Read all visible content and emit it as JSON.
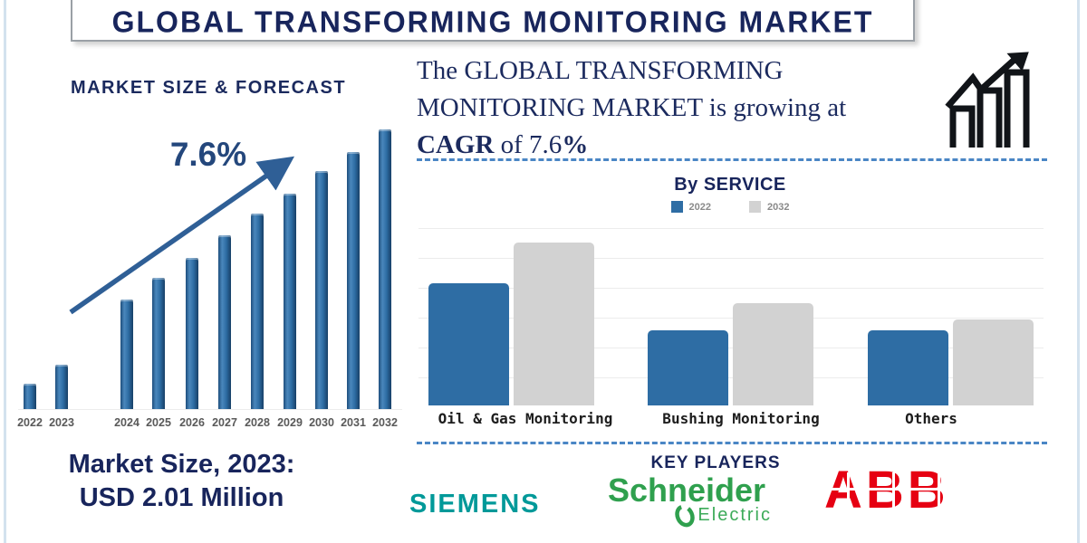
{
  "title_banner": {
    "text": "GLOBAL TRANSFORMING MONITORING MARKET"
  },
  "market_forecast": {
    "heading": "MARKET SIZE & FORECAST",
    "cagr_annotation": "7.6%"
  },
  "growth_note": {
    "line1": "The GLOBAL TRANSFORMING",
    "line2": "MONITORING MARKET is growing at",
    "cagr_bold": "CAGR",
    "cagr_rest": " of 7.6",
    "percent_bold": "%"
  },
  "by_service": {
    "heading": "By SERVICE",
    "legend": [
      {
        "label": "2022",
        "color": "#2e6da4"
      },
      {
        "label": "2032",
        "color": "#d2d2d2"
      }
    ]
  },
  "market_size_note": {
    "line1": "Market Size, 2023:",
    "line2": "USD 2.01 Million"
  },
  "key_players": {
    "heading": "KEY PLAYERS",
    "siemens": "SIEMENS",
    "schneider_line1": "Schneider",
    "schneider_line2": "Electric",
    "abb": "ABB"
  },
  "colors": {
    "navy_text": "#18255c",
    "bar_blue": "#2e6da4",
    "bar_gray": "#d2d2d2",
    "dashed_line_blue": "#4a86c5",
    "trend_arrow_blue": "#2f5f96",
    "siemens_teal": "#009999",
    "schneider_green": "#2fa04e",
    "abb_red": "#e60012",
    "year_label_gray": "#595959"
  },
  "chart_data": [
    {
      "type": "bar",
      "title": "MARKET SIZE & FORECAST",
      "categories": [
        "2022",
        "2023",
        "2024",
        "2025",
        "2026",
        "2027",
        "2028",
        "2029",
        "2030",
        "2031",
        "2032"
      ],
      "values": [
        9,
        16,
        39,
        47,
        54,
        62,
        70,
        77,
        85,
        92,
        100
      ],
      "units": "relative height, % of 2032 bar (no y-axis shown)",
      "annotation": "7.6% CAGR with rising trend arrow",
      "bar_color": "#2e6da4",
      "xlabel": "",
      "ylabel": "",
      "grid": "off"
    },
    {
      "type": "bar",
      "title": "By SERVICE",
      "categories": [
        "Oil & Gas Monitoring",
        "Bushing Monitoring",
        "Others"
      ],
      "series": [
        {
          "name": "2022",
          "color": "#2e6da4",
          "values": [
            75,
            46,
            46
          ]
        },
        {
          "name": "2032",
          "color": "#d2d2d2",
          "values": [
            100,
            63,
            53
          ]
        }
      ],
      "units": "relative height, % of tallest (2032 Oil & Gas) bar (no y-axis shown)",
      "legend_position": "top-center",
      "xlabel": "",
      "ylabel": "",
      "grid": "horizontal"
    }
  ]
}
